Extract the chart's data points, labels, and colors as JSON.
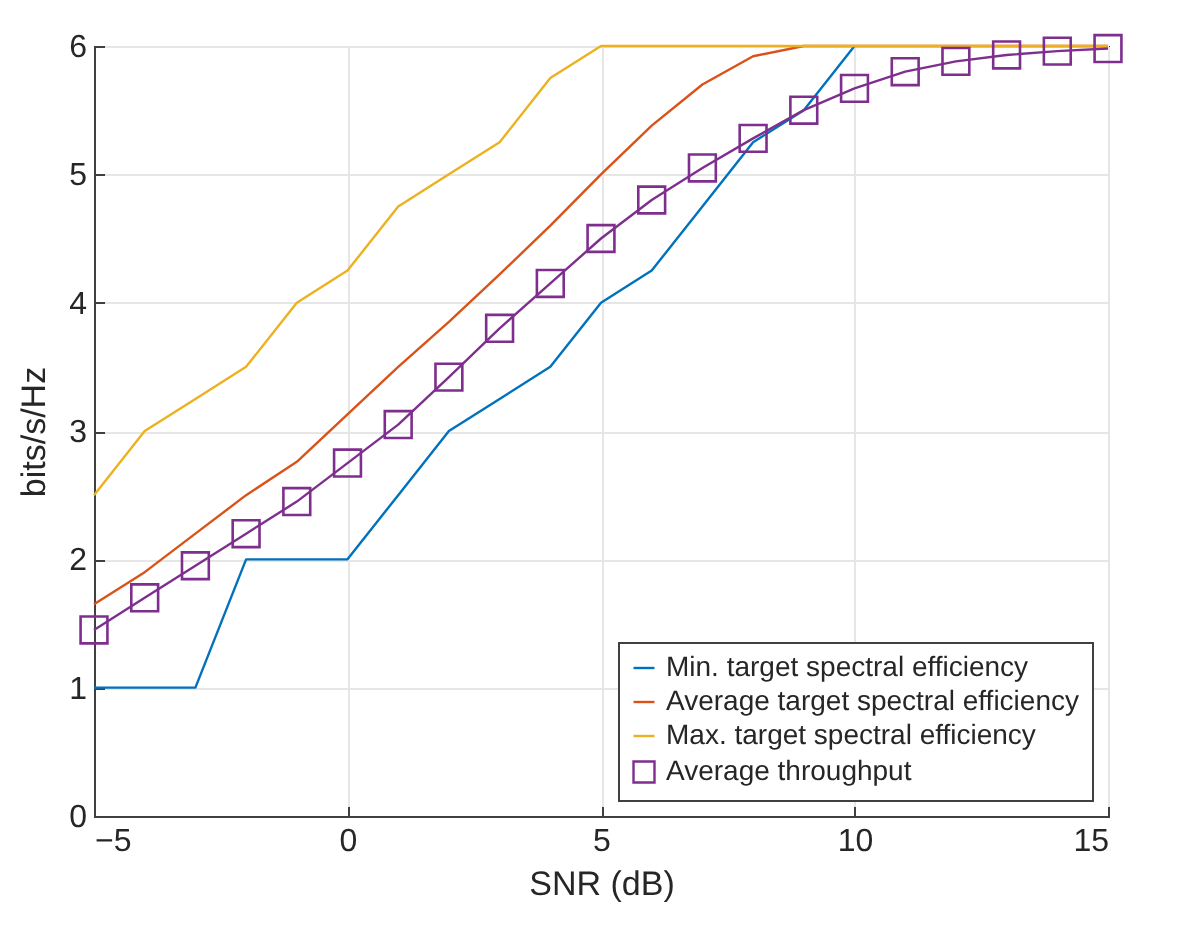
{
  "chart_data": {
    "type": "line",
    "xlabel": "SNR (dB)",
    "ylabel": "bits/s/Hz",
    "x": [
      -5,
      -4,
      -3,
      -2,
      -1,
      0,
      1,
      2,
      3,
      4,
      5,
      6,
      7,
      8,
      9,
      10,
      11,
      12,
      13,
      14,
      15
    ],
    "xlim": [
      -5,
      15
    ],
    "xticks": [
      -5,
      0,
      5,
      10,
      15
    ],
    "ylim": [
      0,
      6
    ],
    "yticks": [
      0,
      1,
      2,
      3,
      4,
      5,
      6
    ],
    "grid": true,
    "legend": "bottom right",
    "series": [
      {
        "name": "Min. target spectral efficiency",
        "color": "#0072bd",
        "marker": "none",
        "values": [
          1,
          1,
          1,
          2,
          2,
          2,
          2.5,
          3,
          3.25,
          3.5,
          4,
          4.25,
          4.75,
          5.25,
          5.5,
          6,
          null,
          null,
          null,
          null,
          null
        ]
      },
      {
        "name": "Average target spectral efficiency",
        "color": "#d95319",
        "marker": "none",
        "values": [
          1.65,
          1.9,
          2.2,
          2.5,
          2.76,
          3.13,
          3.5,
          3.85,
          4.22,
          4.6,
          5,
          5.38,
          5.7,
          5.92,
          6,
          6,
          6,
          6,
          6,
          6,
          6
        ]
      },
      {
        "name": "Max. target spectral efficiency",
        "color": "#edb120",
        "marker": "none",
        "values": [
          2.5,
          3,
          3.25,
          3.5,
          4,
          4.25,
          4.75,
          5,
          5.25,
          5.75,
          6,
          6,
          6,
          6,
          6,
          6,
          6,
          6,
          6,
          6,
          6
        ]
      },
      {
        "name": "Average throughput",
        "color": "#7e2f8e",
        "marker": "square",
        "values": [
          1.45,
          1.7,
          1.95,
          2.2,
          2.45,
          2.75,
          3.05,
          3.42,
          3.8,
          4.15,
          4.5,
          4.8,
          5.05,
          5.28,
          5.5,
          5.67,
          5.8,
          5.88,
          5.93,
          5.96,
          5.98
        ]
      }
    ]
  }
}
